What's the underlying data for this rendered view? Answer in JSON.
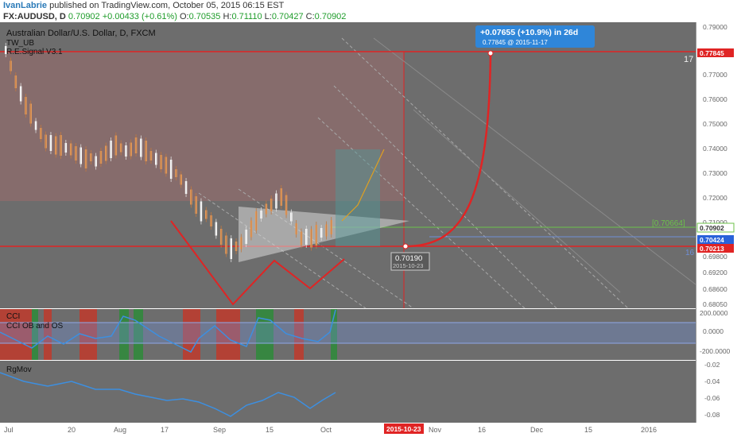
{
  "header": {
    "author": "IvanLabrie",
    "published": "published on TradingView.com, October 05, 2015 06:15 EST",
    "symbol": "FX:AUDUSD, D",
    "last": "0.70902",
    "change": "+0.00433 (+0.61%)",
    "o_label": "O:",
    "o_value": "0.70535",
    "h_label": "H:",
    "h_value": "0.71110",
    "l_label": "L:",
    "l_value": "0.70427",
    "c_label": "C:",
    "c_value": "0.70902"
  },
  "main_pane": {
    "title": "Australian Dollar/U.S. Dollar, D, FXCM",
    "indicator1": "TW_UB",
    "indicator2": "R.E.Signal V3.1",
    "scale_labels": [
      "0.79000",
      "0.77000",
      "0.76000",
      "0.75000",
      "0.74000",
      "0.73000",
      "0.72000",
      "0.71000",
      "0.69800",
      "0.69200",
      "0.68600",
      "0.68050"
    ],
    "price_tags": {
      "target": "0.77845",
      "last": "0.70902",
      "blue": "0.70424",
      "red": "0.70213"
    },
    "green_level": "[0.70664]",
    "count_label": "17",
    "side_label": "16",
    "projection_box": {
      "line1": "+0.07655 (+10.9%) in 26d",
      "line2": "0.77845  @ 2015-11-17"
    },
    "point_label": {
      "value": "0.70190",
      "date": "2015-10-23"
    }
  },
  "cci_pane": {
    "label1": "CCI",
    "label2": "CCI OB and OS",
    "scale_labels": [
      "200.0000",
      "0.0000",
      "-200.0000"
    ]
  },
  "rgmov_pane": {
    "label": "RgMov",
    "scale_labels": [
      "-0.02",
      "-0.04",
      "-0.06",
      "-0.08"
    ]
  },
  "time_axis": {
    "labels": [
      "Jul",
      "20",
      "Aug",
      "17",
      "Sep",
      "15",
      "Oct",
      "Nov",
      "16",
      "Dec",
      "15",
      "2016"
    ],
    "highlight": "2015-10-23"
  },
  "colors": {
    "background": "#6b6b6b",
    "red_line": "#e02424",
    "green_line": "#6cc24a",
    "blue_tag": "#2962d9",
    "cci_line": "#3d8fe0"
  }
}
